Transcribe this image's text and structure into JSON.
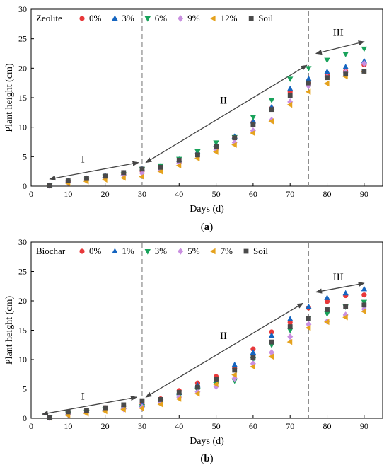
{
  "chart_data": [
    {
      "type": "scatter",
      "panel_label": "(a)",
      "legend_title": "Zeolite",
      "xlabel": "Days (d)",
      "ylabel": "Plant height (cm)",
      "xlim": [
        0,
        95
      ],
      "ylim": [
        0,
        30
      ],
      "xticks": [
        0,
        10,
        20,
        30,
        40,
        50,
        60,
        70,
        80,
        90
      ],
      "yticks": [
        0,
        5,
        10,
        15,
        20,
        25,
        30
      ],
      "vlines": [
        30,
        75
      ],
      "stage_labels": [
        {
          "text": "I",
          "x": 14,
          "y": 4,
          "arrow": [
            5,
            1.2,
            29,
            4
          ]
        },
        {
          "text": "II",
          "x": 52,
          "y": 14,
          "arrow": [
            31,
            4,
            74.5,
            20.5
          ]
        },
        {
          "text": "III",
          "x": 83,
          "y": 25.5,
          "arrow": [
            77,
            22.5,
            90,
            24.5
          ]
        }
      ],
      "x": [
        5,
        10,
        15,
        20,
        25,
        30,
        35,
        40,
        45,
        50,
        55,
        60,
        65,
        70,
        75,
        80,
        85,
        90
      ],
      "series": [
        {
          "name": "0%",
          "color": "#e8383a",
          "marker": "circle",
          "values": [
            0.1,
            0.8,
            1.2,
            1.7,
            2.1,
            2.6,
            3.2,
            4.2,
            5.5,
            6.8,
            8.2,
            10.8,
            13.2,
            16.0,
            17.5,
            18.8,
            19.5,
            20.6
          ]
        },
        {
          "name": "3%",
          "color": "#1565c0",
          "marker": "triangle-up",
          "values": [
            0.1,
            0.9,
            1.3,
            1.8,
            2.2,
            2.9,
            3.4,
            4.5,
            5.8,
            7.1,
            8.4,
            11.0,
            13.4,
            16.5,
            18.2,
            19.4,
            20.2,
            21.2
          ]
        },
        {
          "name": "6%",
          "color": "#18a25a",
          "marker": "triangle-down",
          "values": [
            0.1,
            0.7,
            1.1,
            1.6,
            2.0,
            2.9,
            3.5,
            4.6,
            5.9,
            7.4,
            8.3,
            11.7,
            14.6,
            18.2,
            20.0,
            21.4,
            22.4,
            23.3
          ]
        },
        {
          "name": "9%",
          "color": "#c98fe0",
          "marker": "diamond",
          "values": [
            0.1,
            0.6,
            1.0,
            1.5,
            1.9,
            2.2,
            2.8,
            3.9,
            5.1,
            6.2,
            7.4,
            9.4,
            11.2,
            14.3,
            17.0,
            18.5,
            19.3,
            20.8
          ]
        },
        {
          "name": "12%",
          "color": "#e5a21d",
          "marker": "triangle-left",
          "values": [
            0.1,
            0.5,
            0.8,
            1.1,
            1.4,
            1.6,
            2.5,
            3.5,
            4.7,
            5.8,
            7.0,
            9.0,
            11.0,
            13.8,
            16.0,
            17.4,
            18.6,
            19.4
          ]
        },
        {
          "name": "Soil",
          "color": "#4a4a4a",
          "marker": "square",
          "values": [
            0.1,
            0.9,
            1.3,
            1.7,
            2.3,
            2.9,
            3.2,
            4.4,
            5.3,
            6.7,
            8.2,
            10.4,
            13.0,
            15.4,
            17.5,
            18.4,
            19.0,
            19.5
          ]
        }
      ]
    },
    {
      "type": "scatter",
      "panel_label": "(b)",
      "legend_title": "Biochar",
      "xlabel": "Days (d)",
      "ylabel": "Plant height (cm)",
      "xlim": [
        0,
        95
      ],
      "ylim": [
        0,
        30
      ],
      "xticks": [
        0,
        10,
        20,
        30,
        40,
        50,
        60,
        70,
        80,
        90
      ],
      "yticks": [
        0,
        5,
        10,
        15,
        20,
        25,
        30
      ],
      "vlines": [
        30,
        75
      ],
      "stage_labels": [
        {
          "text": "I",
          "x": 14,
          "y": 3.2,
          "arrow": [
            3,
            0.7,
            28.5,
            3.6
          ]
        },
        {
          "text": "II",
          "x": 52,
          "y": 13.5,
          "arrow": [
            31,
            3.6,
            73.5,
            19.6
          ]
        },
        {
          "text": "III",
          "x": 83,
          "y": 23.5,
          "arrow": [
            77,
            21.5,
            90,
            23
          ]
        }
      ],
      "x": [
        5,
        10,
        15,
        20,
        25,
        30,
        35,
        40,
        45,
        50,
        55,
        60,
        65,
        70,
        75,
        80,
        85,
        90
      ],
      "series": [
        {
          "name": "0%",
          "color": "#e8383a",
          "marker": "circle",
          "values": [
            0.1,
            1.0,
            1.3,
            1.8,
            2.1,
            2.4,
            3.3,
            4.7,
            6.0,
            7.1,
            8.5,
            11.8,
            14.7,
            16.3,
            18.8,
            19.9,
            20.9,
            21.0
          ]
        },
        {
          "name": "1%",
          "color": "#1565c0",
          "marker": "triangle-up",
          "values": [
            0.1,
            0.9,
            1.2,
            1.7,
            2.0,
            2.3,
            3.0,
            4.3,
            5.6,
            6.4,
            9.1,
            11.2,
            14.1,
            16.9,
            19.0,
            20.5,
            21.3,
            22.0
          ]
        },
        {
          "name": "3%",
          "color": "#18a25a",
          "marker": "triangle-down",
          "values": [
            0.1,
            0.8,
            1.1,
            1.5,
            1.8,
            2.0,
            2.8,
            3.9,
            4.8,
            5.8,
            6.4,
            10.0,
            12.5,
            15.0,
            17.1,
            17.8,
            19.0,
            19.8
          ]
        },
        {
          "name": "5%",
          "color": "#c98fe0",
          "marker": "diamond",
          "values": [
            0.1,
            0.7,
            1.0,
            1.4,
            1.6,
            1.9,
            2.6,
            3.6,
            4.5,
            5.4,
            6.8,
            9.3,
            11.2,
            13.9,
            16.0,
            16.5,
            17.6,
            18.6
          ]
        },
        {
          "name": "7%",
          "color": "#e5a21d",
          "marker": "triangle-left",
          "values": [
            0.1,
            0.5,
            0.8,
            1.2,
            1.5,
            1.7,
            2.4,
            3.3,
            4.2,
            5.8,
            7.4,
            8.8,
            10.5,
            13.0,
            15.4,
            16.4,
            17.2,
            18.2
          ]
        },
        {
          "name": "Soil",
          "color": "#4a4a4a",
          "marker": "square",
          "values": [
            0.1,
            1.1,
            1.3,
            1.8,
            2.3,
            3.0,
            3.2,
            4.4,
            5.3,
            6.7,
            8.2,
            10.4,
            13.0,
            15.6,
            17.0,
            18.5,
            19.0,
            19.3
          ]
        }
      ]
    }
  ]
}
